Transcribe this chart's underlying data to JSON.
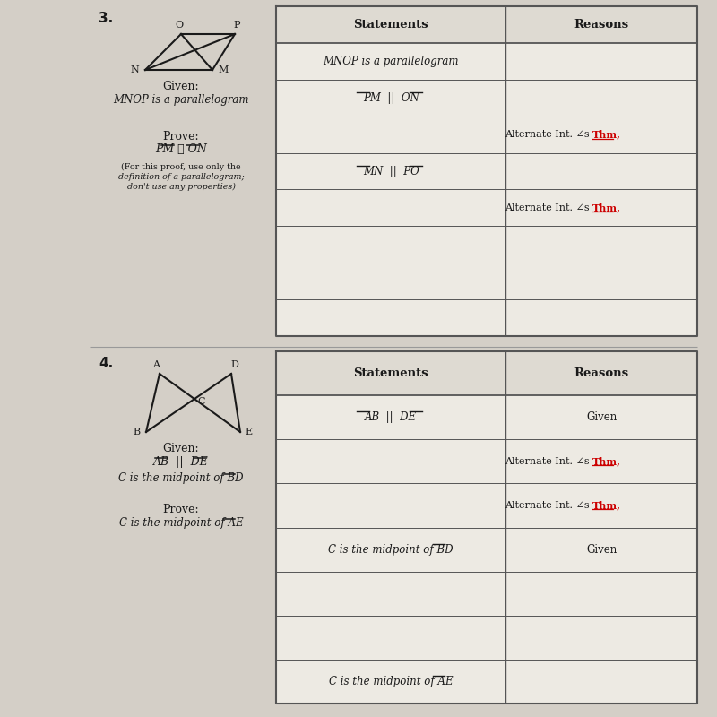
{
  "bg_color": "#d4cfc7",
  "table_bg": "#edeae3",
  "header_bg": "#dedad2",
  "line_color": "#555555",
  "text_color": "#1a1a1a",
  "red_color": "#cc0000",
  "prob3": {
    "number": "3.",
    "rows": [
      {
        "stmt": "MNOP is a parallelogram",
        "rsn": "",
        "stmt_italic": true,
        "rsn_red": false,
        "stmt_overline": false
      },
      {
        "stmt": "PM || ON",
        "rsn": "",
        "stmt_italic": true,
        "rsn_red": false,
        "stmt_overline": true
      },
      {
        "stmt": "",
        "rsn": "Alternate Int. ∠s Thm,",
        "stmt_italic": false,
        "rsn_red": true,
        "stmt_overline": false
      },
      {
        "stmt": "MN || PO",
        "rsn": "",
        "stmt_italic": true,
        "rsn_red": false,
        "stmt_overline": true
      },
      {
        "stmt": "",
        "rsn": "Alternate Int. ∠s Thm,",
        "stmt_italic": false,
        "rsn_red": true,
        "stmt_overline": false
      },
      {
        "stmt": "",
        "rsn": "",
        "stmt_italic": false,
        "rsn_red": false,
        "stmt_overline": false
      },
      {
        "stmt": "",
        "rsn": "",
        "stmt_italic": false,
        "rsn_red": false,
        "stmt_overline": false
      },
      {
        "stmt": "",
        "rsn": "",
        "stmt_italic": false,
        "rsn_red": false,
        "stmt_overline": false
      }
    ]
  },
  "prob4": {
    "number": "4.",
    "rows": [
      {
        "stmt": "AB || DE",
        "rsn": "Given",
        "stmt_italic": true,
        "rsn_red": false,
        "stmt_overline": true
      },
      {
        "stmt": "",
        "rsn": "Alternate Int. ∠s Thm,",
        "stmt_italic": false,
        "rsn_red": true,
        "stmt_overline": false
      },
      {
        "stmt": "",
        "rsn": "Alternate Int. ∠s Thm,",
        "stmt_italic": false,
        "rsn_red": true,
        "stmt_overline": false
      },
      {
        "stmt": "C is the midpoint of BD",
        "rsn": "Given",
        "stmt_italic": true,
        "rsn_red": false,
        "stmt_overline": true
      },
      {
        "stmt": "",
        "rsn": "",
        "stmt_italic": false,
        "rsn_red": false,
        "stmt_overline": false
      },
      {
        "stmt": "",
        "rsn": "",
        "stmt_italic": false,
        "rsn_red": false,
        "stmt_overline": false
      },
      {
        "stmt": "C is the midpoint of AE",
        "rsn": "",
        "stmt_italic": true,
        "rsn_red": false,
        "stmt_overline": true
      }
    ]
  }
}
